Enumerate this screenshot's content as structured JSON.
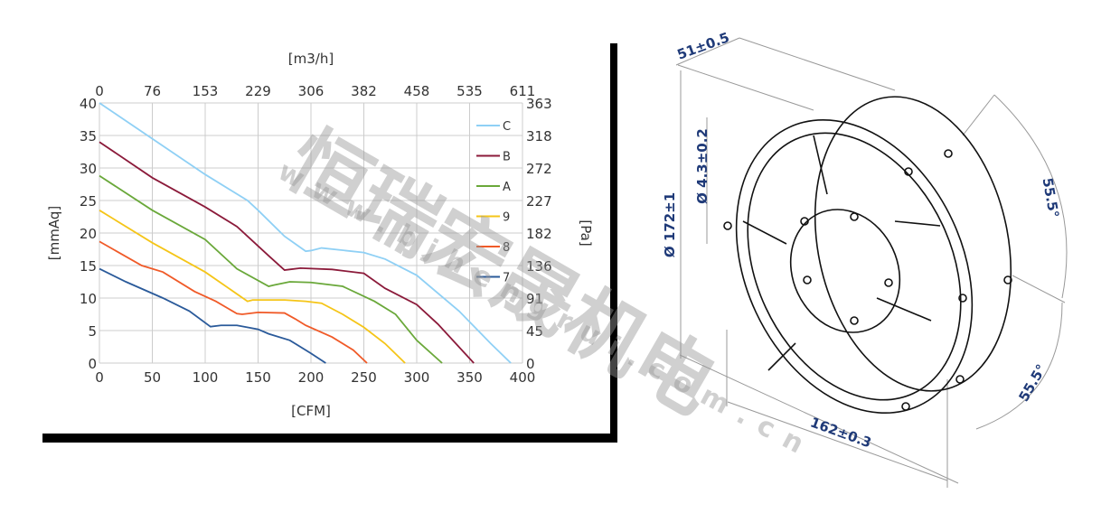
{
  "chart_data": {
    "type": "line",
    "xlabel": "[CFM]",
    "x2label": "[m3/h]",
    "ylabel": "[mmAq]",
    "y2label": "[Pa]",
    "xlim": [
      0,
      400
    ],
    "ylim": [
      0,
      40
    ],
    "xticks": [
      0,
      50,
      100,
      150,
      200,
      250,
      300,
      350,
      400
    ],
    "yticks": [
      0,
      5,
      10,
      15,
      20,
      25,
      30,
      35,
      40
    ],
    "x2ticks": [
      "0",
      "76",
      "153",
      "229",
      "306",
      "382",
      "458",
      "535",
      "611"
    ],
    "y2ticks": [
      "0",
      "45",
      "91",
      "136",
      "182",
      "227",
      "272",
      "318",
      "363"
    ],
    "grid": true,
    "legend_position": "right",
    "series": [
      {
        "name": "C",
        "color": "#8fd0f5",
        "points": [
          [
            0,
            40
          ],
          [
            50,
            34.5
          ],
          [
            100,
            29
          ],
          [
            140,
            25
          ],
          [
            150,
            23.5
          ],
          [
            175,
            19.5
          ],
          [
            195,
            17.2
          ],
          [
            200,
            17.3
          ],
          [
            210,
            17.7
          ],
          [
            250,
            17
          ],
          [
            270,
            16
          ],
          [
            300,
            13.5
          ],
          [
            340,
            8
          ],
          [
            370,
            3
          ],
          [
            389,
            0
          ]
        ]
      },
      {
        "name": "B",
        "color": "#8b1a3a",
        "points": [
          [
            0,
            34
          ],
          [
            50,
            28.5
          ],
          [
            100,
            24
          ],
          [
            130,
            21
          ],
          [
            160,
            16.5
          ],
          [
            175,
            14.3
          ],
          [
            180,
            14.4
          ],
          [
            190,
            14.6
          ],
          [
            220,
            14.4
          ],
          [
            250,
            13.8
          ],
          [
            270,
            11.5
          ],
          [
            300,
            9
          ],
          [
            320,
            6
          ],
          [
            354,
            0
          ]
        ]
      },
      {
        "name": "A",
        "color": "#6aa83a",
        "points": [
          [
            0,
            28.8
          ],
          [
            50,
            23.5
          ],
          [
            100,
            19
          ],
          [
            130,
            14.5
          ],
          [
            160,
            11.8
          ],
          [
            165,
            12
          ],
          [
            180,
            12.5
          ],
          [
            200,
            12.4
          ],
          [
            230,
            11.8
          ],
          [
            260,
            9.5
          ],
          [
            280,
            7.5
          ],
          [
            300,
            3.5
          ],
          [
            324,
            0
          ]
        ]
      },
      {
        "name": "9",
        "color": "#f5c518",
        "points": [
          [
            0,
            23.5
          ],
          [
            50,
            18.5
          ],
          [
            100,
            14
          ],
          [
            140,
            9.5
          ],
          [
            145,
            9.7
          ],
          [
            175,
            9.7
          ],
          [
            195,
            9.5
          ],
          [
            210,
            9.2
          ],
          [
            230,
            7.5
          ],
          [
            250,
            5.5
          ],
          [
            270,
            3
          ],
          [
            289,
            0
          ]
        ]
      },
      {
        "name": "8",
        "color": "#f05a28",
        "points": [
          [
            0,
            18.7
          ],
          [
            40,
            15
          ],
          [
            60,
            14
          ],
          [
            90,
            11
          ],
          [
            110,
            9.5
          ],
          [
            130,
            7.6
          ],
          [
            135,
            7.5
          ],
          [
            150,
            7.8
          ],
          [
            175,
            7.7
          ],
          [
            185,
            6.8
          ],
          [
            195,
            5.8
          ],
          [
            220,
            4
          ],
          [
            240,
            2
          ],
          [
            253,
            0
          ]
        ]
      },
      {
        "name": "7",
        "color": "#2a5a9a",
        "points": [
          [
            0,
            14.5
          ],
          [
            25,
            12.5
          ],
          [
            60,
            10
          ],
          [
            85,
            8
          ],
          [
            105,
            5.6
          ],
          [
            115,
            5.8
          ],
          [
            130,
            5.8
          ],
          [
            150,
            5.2
          ],
          [
            160,
            4.5
          ],
          [
            180,
            3.5
          ],
          [
            200,
            1.5
          ],
          [
            214,
            0
          ]
        ]
      }
    ]
  },
  "drawing": {
    "depth": "51±0.5",
    "diameter": "Ø 172±1",
    "hole": "Ø 4.3±0.2",
    "width": "162±0.3",
    "angle_top": "55.5°",
    "angle_bottom": "55.5°",
    "dim_color": "#1f3a78"
  },
  "watermark": {
    "company": "恒瑞宏晟机电",
    "url": "www.bjhengrui.com.cn"
  }
}
